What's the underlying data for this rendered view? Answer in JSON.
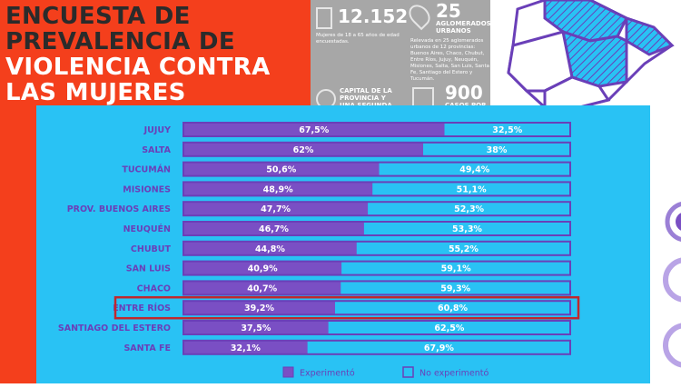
{
  "title": {
    "line1": "ENCUESTA DE",
    "line2": "PREVALENCIA DE",
    "line3": "VIOLENCIA CONTRA",
    "line4": "LAS MUJERES"
  },
  "infographic": {
    "stat1_value": "12.152",
    "stat1_desc": "Mujeres de 18 a 65 años de edad encuestadas.",
    "stat2_value": "25",
    "stat2_label": "AGLOMERADOS URBANOS",
    "stat2_desc": "Relevada en 25 aglomerados urbanos de 12 provincias: Buenos Aires, Chaco, Chubut, Entre Ríos, Jujuy, Neuquén, Misiones, Salta, San Luis, Santa Fe, Santiago del Estero y Tucumán.",
    "stat3_label": "CAPITAL DE LA PROVINCIA Y UNA SEGUNDA",
    "stat4_value": "900",
    "stat4_label": "CASOS POR"
  },
  "colors": {
    "experimento": "#7a4fc4",
    "no_experimento": "#29c2f4",
    "bar_border": "#6a3fb8",
    "label": "#6a3fb8",
    "highlight": "#c0282d",
    "panel": "#29c2f4"
  },
  "chart_data": {
    "type": "bar",
    "stacked": true,
    "orientation": "horizontal",
    "categories": [
      "JUJUY",
      "SALTA",
      "TUCUMÁN",
      "MISIONES",
      "PROV. BUENOS AIRES",
      "NEUQUÉN",
      "CHUBUT",
      "SAN LUIS",
      "CHACO",
      "ENTRE RÍOS",
      "SANTIAGO DEL ESTERO",
      "SANTA FE"
    ],
    "series": [
      {
        "name": "Experimentó",
        "values": [
          67.5,
          62,
          50.6,
          48.9,
          47.7,
          46.7,
          44.8,
          40.9,
          40.7,
          39.2,
          37.5,
          32.1
        ],
        "labels": [
          "67,5%",
          "62%",
          "50,6%",
          "48,9%",
          "47,7%",
          "46,7%",
          "44,8%",
          "40,9%",
          "40,7%",
          "39,2%",
          "37,5%",
          "32,1%"
        ]
      },
      {
        "name": "No experimentó",
        "values": [
          32.5,
          38,
          49.4,
          51.1,
          52.3,
          53.3,
          55.2,
          59.1,
          59.3,
          60.8,
          62.5,
          67.9
        ],
        "labels": [
          "32,5%",
          "38%",
          "49,4%",
          "51,1%",
          "52,3%",
          "53,3%",
          "55,2%",
          "59,1%",
          "59,3%",
          "60,8%",
          "62,5%",
          "67,9%"
        ]
      }
    ],
    "xlim": [
      0,
      100
    ],
    "highlighted_category": "ENTRE RÍOS",
    "legend_position": "bottom"
  }
}
